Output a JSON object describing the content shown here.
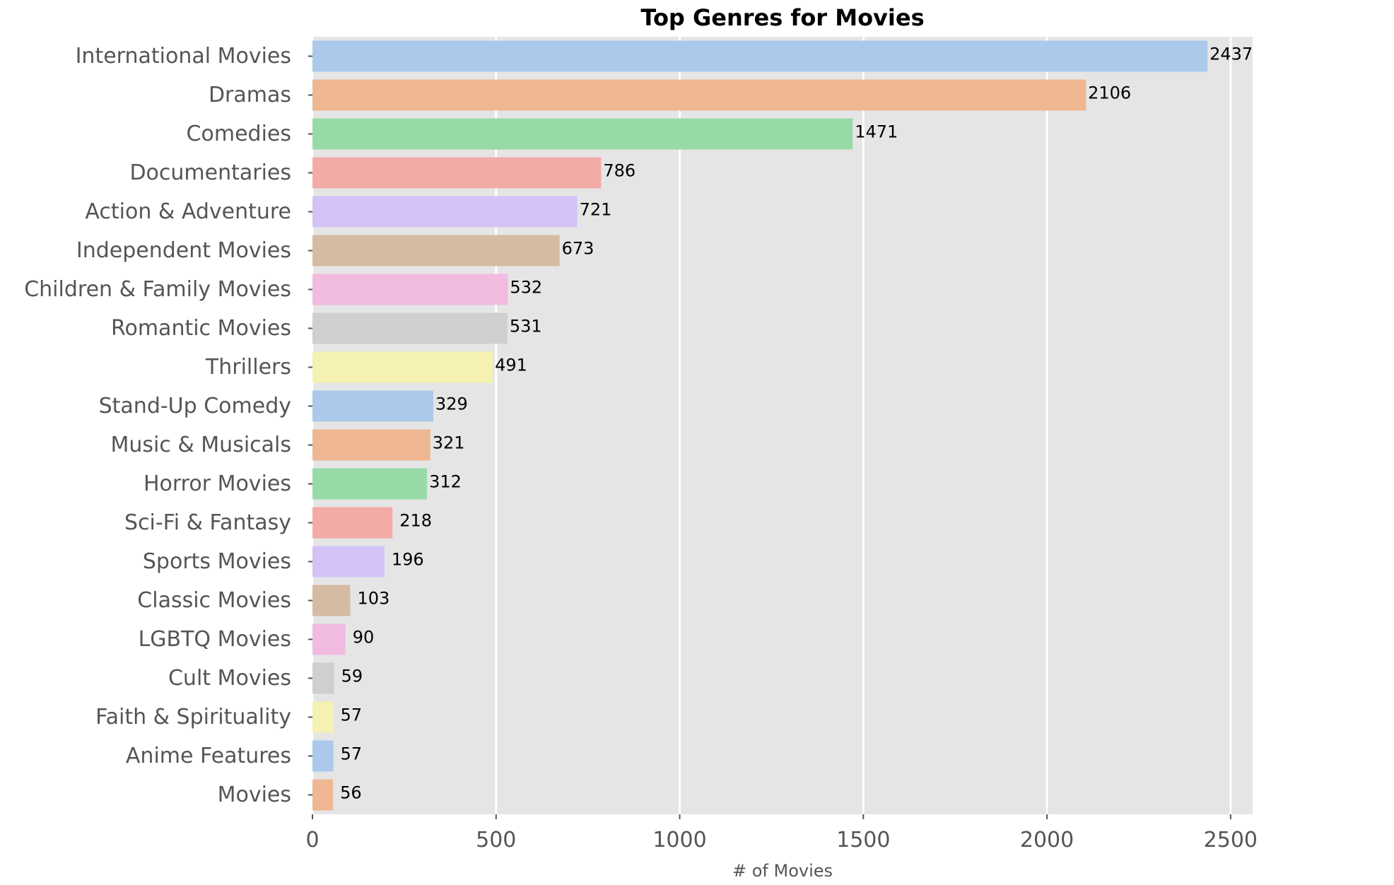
{
  "chart_data": {
    "type": "bar",
    "orientation": "horizontal",
    "title": "Top Genres for Movies",
    "xlabel": "# of Movies",
    "ylabel": "",
    "xlim": [
      0,
      2560
    ],
    "xticks": [
      0,
      500,
      1000,
      1500,
      2000,
      2500
    ],
    "grid": true,
    "legend": false,
    "background": "#e5e5e5",
    "palette": [
      "#abc9ea",
      "#efb792",
      "#98daa7",
      "#f3aba8",
      "#d3c3f7",
      "#d5bba2",
      "#f1bbe0",
      "#cfcfcf",
      "#f4f1b3"
    ],
    "categories": [
      "International Movies",
      "Dramas",
      "Comedies",
      "Documentaries",
      "Action & Adventure",
      "Independent Movies",
      "Children & Family Movies",
      "Romantic Movies",
      "Thrillers",
      "Stand-Up Comedy",
      "Music & Musicals",
      "Horror Movies",
      "Sci-Fi & Fantasy",
      "Sports Movies",
      "Classic Movies",
      "LGBTQ Movies",
      "Cult Movies",
      "Faith & Spirituality",
      "Anime Features",
      "Movies"
    ],
    "values": [
      2437,
      2106,
      1471,
      786,
      721,
      673,
      532,
      531,
      491,
      329,
      321,
      312,
      218,
      196,
      103,
      90,
      59,
      57,
      57,
      56
    ]
  }
}
